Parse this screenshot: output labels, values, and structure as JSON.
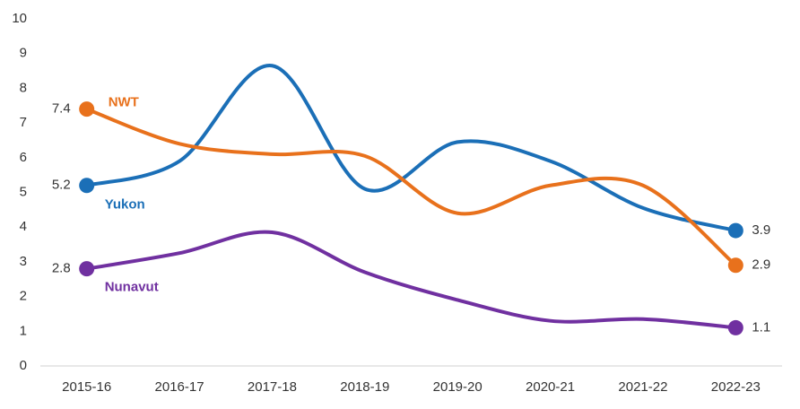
{
  "chart_data": {
    "type": "line",
    "categories": [
      "2015-16",
      "2016-17",
      "2017-18",
      "2018-19",
      "2019-20",
      "2020-21",
      "2021-22",
      "2022-23"
    ],
    "series": [
      {
        "name": "Yukon",
        "color": "#1b6fb7",
        "values": [
          5.2,
          5.9,
          8.65,
          5.1,
          6.45,
          5.9,
          4.55,
          3.9
        ]
      },
      {
        "name": "NWT",
        "color": "#e8711c",
        "values": [
          7.4,
          6.4,
          6.1,
          6.05,
          4.4,
          5.2,
          5.2,
          2.9
        ]
      },
      {
        "name": "Nunavut",
        "color": "#7030a0",
        "values": [
          2.8,
          3.25,
          3.85,
          2.7,
          1.9,
          1.3,
          1.35,
          1.1
        ]
      }
    ],
    "ylim": [
      0,
      10
    ],
    "yticks": [
      0,
      1,
      2,
      3,
      4,
      5,
      6,
      7,
      8,
      9,
      10
    ],
    "grid": false
  }
}
